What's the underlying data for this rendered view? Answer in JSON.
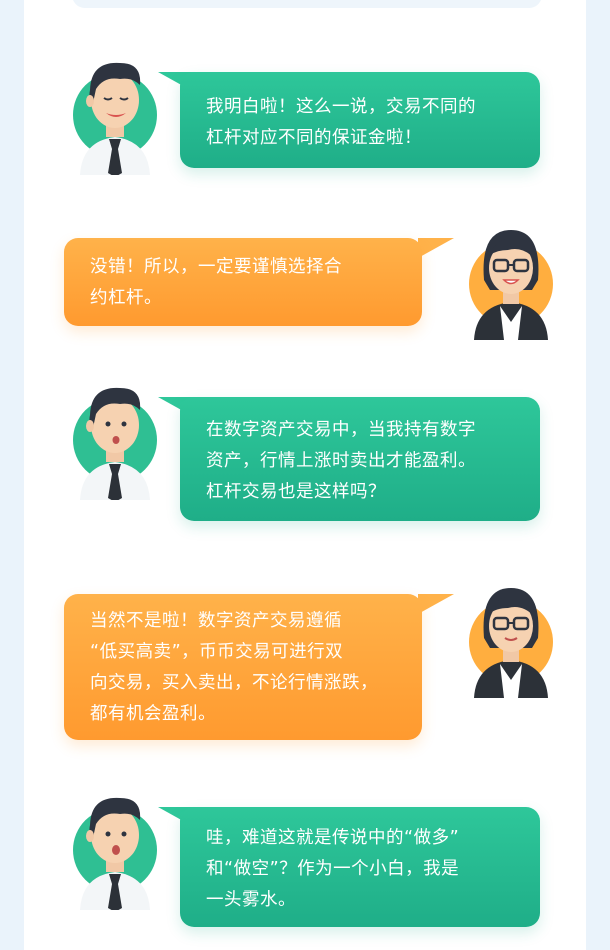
{
  "conversation": [
    {
      "speaker": "man",
      "color": "green",
      "text": "我明白啦！这么一说，交易不同的\n杠杆对应不同的保证金啦！"
    },
    {
      "speaker": "woman",
      "color": "orange",
      "text": "没错！所以，一定要谨慎选择合\n约杠杆。"
    },
    {
      "speaker": "man",
      "color": "green",
      "text": "在数字资产交易中，当我持有数字\n资产，行情上涨时卖出才能盈利。\n杠杆交易也是这样吗？"
    },
    {
      "speaker": "woman",
      "color": "orange",
      "text": "当然不是啦！数字资产交易遵循\n“低买高卖”，币币交易可进行双\n向交易，买入卖出，不论行情涨跌，\n都有机会盈利。"
    },
    {
      "speaker": "man",
      "color": "green",
      "text": "哇，难道这就是传说中的“做多”\n和“做空”？作为一个小白，我是\n一头雾水。"
    }
  ],
  "colors": {
    "green": "#1fae88",
    "orange": "#ff9a2f",
    "background": "#eaf3fb"
  },
  "icons": {
    "man": "man-avatar-icon",
    "woman": "woman-avatar-icon"
  }
}
